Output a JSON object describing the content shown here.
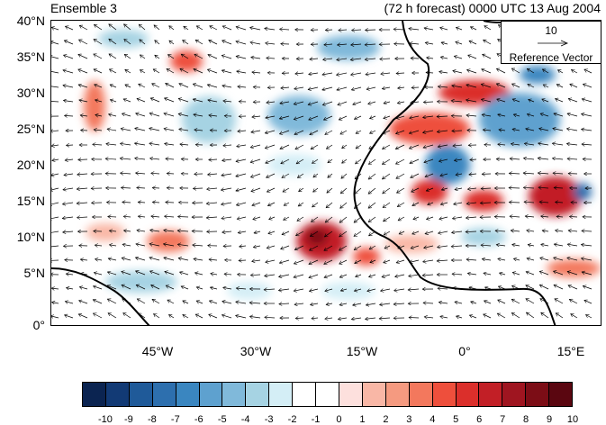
{
  "title_left": "Ensemble 3",
  "title_right": "(72 h forecast) 0000 UTC 13 Aug 2004",
  "lat_labels": [
    "40°N",
    "35°N",
    "30°N",
    "25°N",
    "20°N",
    "15°N",
    "10°N",
    "5°N",
    "0°"
  ],
  "lon_labels": [
    "45°W",
    "30°W",
    "15°W",
    "0°",
    "15°E"
  ],
  "reference_vector": {
    "magnitude": "10",
    "label": "Reference Vector"
  },
  "colorbar": {
    "labels": [
      "-10",
      "-9",
      "-8",
      "-7",
      "-6",
      "-5",
      "-4",
      "-3",
      "-2",
      "-1",
      "0",
      "1",
      "2",
      "3",
      "4",
      "5",
      "6",
      "7",
      "8",
      "9",
      "10"
    ],
    "colors": [
      "#0b2451",
      "#123a75",
      "#1f5a99",
      "#2d6fae",
      "#3a86c0",
      "#5ea1cf",
      "#80b9da",
      "#a6d3e3",
      "#d4eef6",
      "#ffffff",
      "#ffffff",
      "#fde0dd",
      "#f9b7a6",
      "#f59a80",
      "#f3785d",
      "#ee4f3c",
      "#db2f2b",
      "#c21f26",
      "#9f1520",
      "#7c0d16",
      "#5a0610"
    ]
  }
}
